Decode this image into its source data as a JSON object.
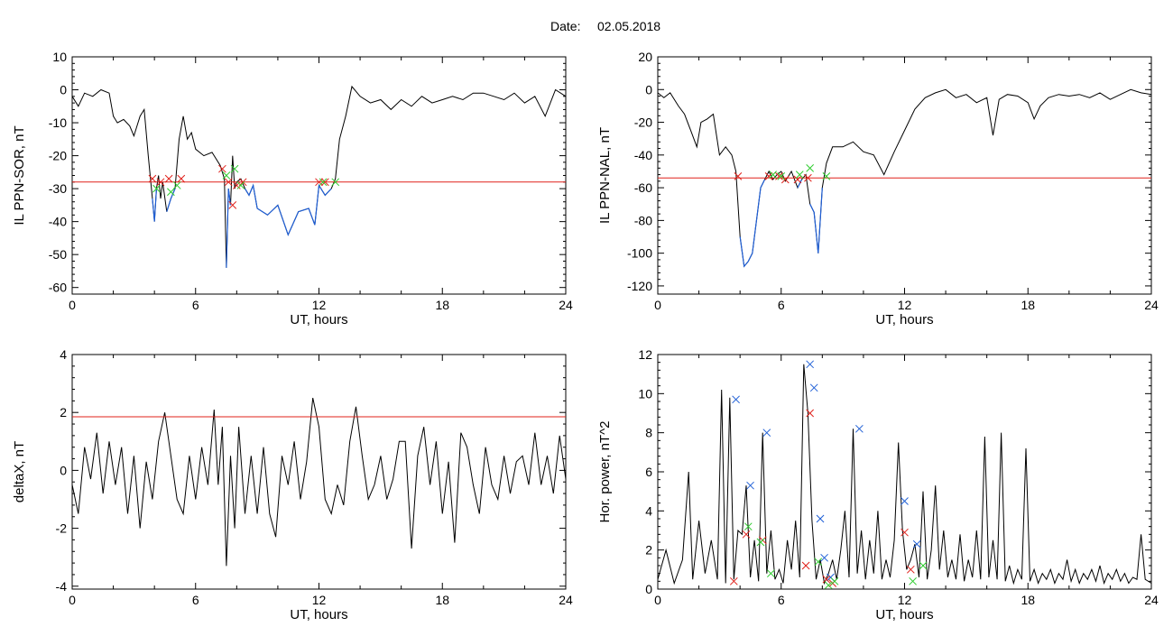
{
  "header": {
    "date_label": "Date:",
    "date_value": "02.05.2018"
  },
  "colors": {
    "axis": "#000000",
    "trace": "#000000",
    "highlight": "#1f5fd6",
    "threshold": "#e0201a",
    "mark_red": "#e0201a",
    "mark_green": "#2ecc2e",
    "mark_blue": "#1f5fd6"
  },
  "chart_data": [
    {
      "id": "sor",
      "type": "line",
      "xlabel": "UT, hours",
      "ylabel": "IL PPN-SOR, nT",
      "xlim": [
        0,
        24
      ],
      "ylim": [
        -62,
        10
      ],
      "xticks": [
        0,
        6,
        12,
        18,
        24
      ],
      "yticks": [
        10,
        0,
        -10,
        -20,
        -30,
        -40,
        -50,
        -60
      ],
      "threshold": -28,
      "series": [
        {
          "x": [
            0,
            0.3,
            0.6,
            1,
            1.4,
            1.8,
            2.0,
            2.2,
            2.5,
            2.8,
            3.0,
            3.3,
            3.5,
            3.7,
            3.9,
            4.0,
            4.1,
            4.2,
            4.3,
            4.4,
            4.6,
            4.8,
            5.0,
            5.2,
            5.4,
            5.6,
            5.8,
            6.0,
            6.4,
            6.8,
            7.2,
            7.4,
            7.5,
            7.6,
            7.7,
            7.8,
            7.9,
            8.0,
            8.2,
            8.4,
            8.6,
            8.8,
            9.0,
            9.5,
            10,
            10.5,
            11,
            11.5,
            11.8,
            12.0,
            12.3,
            12.6,
            12.8,
            13.0,
            13.3,
            13.6,
            14.0,
            14.5,
            15.0,
            15.5,
            16.0,
            16.5,
            17.0,
            17.5,
            18.0,
            18.5,
            19.0,
            19.5,
            20.0,
            20.5,
            21.0,
            21.5,
            22.0,
            22.5,
            23.0,
            23.5,
            24
          ],
          "y": [
            -2,
            -5,
            -1,
            -2,
            0,
            -1,
            -8,
            -10,
            -9,
            -11,
            -14,
            -8,
            -6,
            -20,
            -33,
            -40,
            -30,
            -26,
            -33,
            -28,
            -37,
            -33,
            -30,
            -15,
            -8,
            -15,
            -13,
            -18,
            -20,
            -19,
            -23,
            -27,
            -54,
            -30,
            -35,
            -20,
            -30,
            -28,
            -27,
            -30,
            -32,
            -29,
            -36,
            -38,
            -35,
            -44,
            -37,
            -36,
            -41,
            -29,
            -32,
            -30,
            -27,
            -15,
            -8,
            1,
            -2,
            -4,
            -3,
            -6,
            -3,
            -5,
            -2,
            -4,
            -3,
            -2,
            -3,
            -1,
            -1,
            -2,
            -3,
            -1,
            -4,
            -2,
            -8,
            0,
            -2
          ]
        }
      ],
      "markers": [
        {
          "x": 3.9,
          "y": -27,
          "color": "red"
        },
        {
          "x": 4.3,
          "y": -28,
          "color": "red"
        },
        {
          "x": 4.7,
          "y": -27,
          "color": "red"
        },
        {
          "x": 5.3,
          "y": -27,
          "color": "red"
        },
        {
          "x": 4.1,
          "y": -30,
          "color": "green"
        },
        {
          "x": 4.8,
          "y": -31,
          "color": "green"
        },
        {
          "x": 5.1,
          "y": -29,
          "color": "green"
        },
        {
          "x": 7.3,
          "y": -24,
          "color": "red"
        },
        {
          "x": 7.6,
          "y": -28,
          "color": "red"
        },
        {
          "x": 7.8,
          "y": -35,
          "color": "red"
        },
        {
          "x": 8.0,
          "y": -29,
          "color": "red"
        },
        {
          "x": 8.3,
          "y": -28,
          "color": "red"
        },
        {
          "x": 7.5,
          "y": -26,
          "color": "green"
        },
        {
          "x": 7.9,
          "y": -24,
          "color": "green"
        },
        {
          "x": 8.2,
          "y": -29,
          "color": "green"
        },
        {
          "x": 12.0,
          "y": -28,
          "color": "red"
        },
        {
          "x": 12.3,
          "y": -28,
          "color": "red"
        },
        {
          "x": 12.2,
          "y": -28,
          "color": "green"
        },
        {
          "x": 12.8,
          "y": -28,
          "color": "green"
        }
      ]
    },
    {
      "id": "nal",
      "type": "line",
      "xlabel": "UT, hours",
      "ylabel": "IL PPN-NAL, nT",
      "xlim": [
        0,
        24
      ],
      "ylim": [
        -125,
        20
      ],
      "xticks": [
        0,
        6,
        12,
        18,
        24
      ],
      "yticks": [
        20,
        0,
        -20,
        -40,
        -60,
        -80,
        -100,
        -120
      ],
      "threshold": -54,
      "series": [
        {
          "x": [
            0,
            0.3,
            0.6,
            1.0,
            1.3,
            1.6,
            1.9,
            2.1,
            2.4,
            2.7,
            3.0,
            3.3,
            3.6,
            3.8,
            4.0,
            4.2,
            4.4,
            4.6,
            4.8,
            5.0,
            5.2,
            5.4,
            5.6,
            5.8,
            6.0,
            6.2,
            6.5,
            6.8,
            7.0,
            7.2,
            7.4,
            7.6,
            7.8,
            8.0,
            8.2,
            8.5,
            9.0,
            9.5,
            10,
            10.5,
            11.0,
            11.5,
            12.0,
            12.5,
            13.0,
            13.5,
            14.0,
            14.5,
            15.0,
            15.5,
            16.0,
            16.3,
            16.6,
            17.0,
            17.5,
            18.0,
            18.3,
            18.6,
            19.0,
            19.5,
            20.0,
            20.5,
            21.0,
            21.5,
            22.0,
            22.5,
            23.0,
            23.5,
            24
          ],
          "y": [
            -2,
            -5,
            -2,
            -10,
            -15,
            -25,
            -35,
            -20,
            -18,
            -15,
            -40,
            -35,
            -40,
            -50,
            -90,
            -108,
            -105,
            -100,
            -80,
            -60,
            -55,
            -50,
            -55,
            -52,
            -50,
            -56,
            -50,
            -60,
            -55,
            -52,
            -70,
            -75,
            -100,
            -60,
            -45,
            -35,
            -35,
            -32,
            -38,
            -40,
            -52,
            -38,
            -25,
            -12,
            -5,
            -2,
            0,
            -5,
            -3,
            -8,
            -5,
            -28,
            -6,
            -3,
            -4,
            -8,
            -18,
            -10,
            -5,
            -3,
            -4,
            -3,
            -5,
            -2,
            -6,
            -3,
            0,
            -2,
            -3
          ]
        }
      ],
      "markers": [
        {
          "x": 3.9,
          "y": -53,
          "color": "red"
        },
        {
          "x": 5.4,
          "y": -53,
          "color": "red"
        },
        {
          "x": 5.9,
          "y": -53,
          "color": "red"
        },
        {
          "x": 6.2,
          "y": -55,
          "color": "red"
        },
        {
          "x": 6.8,
          "y": -55,
          "color": "red"
        },
        {
          "x": 7.3,
          "y": -54,
          "color": "red"
        },
        {
          "x": 5.6,
          "y": -52,
          "color": "green"
        },
        {
          "x": 6.0,
          "y": -53,
          "color": "green"
        },
        {
          "x": 6.9,
          "y": -52,
          "color": "green"
        },
        {
          "x": 7.4,
          "y": -48,
          "color": "green"
        },
        {
          "x": 8.2,
          "y": -53,
          "color": "green"
        }
      ]
    },
    {
      "id": "deltax",
      "type": "line",
      "xlabel": "UT, hours",
      "ylabel": "deltaX, nT",
      "xlim": [
        0,
        24
      ],
      "ylim": [
        -4.1,
        4
      ],
      "xticks": [
        0,
        6,
        12,
        18,
        24
      ],
      "yticks": [
        4,
        2,
        0,
        -2,
        -4
      ],
      "threshold": 1.85,
      "series": [
        {
          "x": [
            0,
            0.3,
            0.6,
            0.9,
            1.2,
            1.5,
            1.8,
            2.1,
            2.4,
            2.7,
            3.0,
            3.3,
            3.6,
            3.9,
            4.2,
            4.5,
            4.8,
            5.1,
            5.4,
            5.7,
            6.0,
            6.3,
            6.6,
            6.9,
            7.1,
            7.3,
            7.5,
            7.7,
            7.9,
            8.1,
            8.4,
            8.7,
            9.0,
            9.3,
            9.6,
            9.9,
            10.2,
            10.5,
            10.8,
            11.1,
            11.4,
            11.7,
            12.0,
            12.3,
            12.6,
            12.9,
            13.2,
            13.5,
            13.8,
            14.1,
            14.4,
            14.7,
            15.0,
            15.3,
            15.6,
            15.9,
            16.2,
            16.5,
            16.8,
            17.1,
            17.4,
            17.7,
            18.0,
            18.3,
            18.6,
            18.9,
            19.2,
            19.5,
            19.8,
            20.1,
            20.4,
            20.7,
            21.0,
            21.3,
            21.6,
            21.9,
            22.2,
            22.5,
            22.8,
            23.1,
            23.4,
            23.7,
            24
          ],
          "y": [
            -0.5,
            -1.5,
            0.8,
            -0.3,
            1.3,
            -0.8,
            1.0,
            -0.5,
            0.8,
            -1.5,
            0.5,
            -2.0,
            0.3,
            -1.0,
            1.0,
            2.0,
            0.5,
            -1.0,
            -1.5,
            0.5,
            -1.0,
            0.8,
            -0.5,
            2.1,
            -0.5,
            1.5,
            -3.3,
            0.5,
            -2.0,
            1.5,
            -1.5,
            0.5,
            -1.5,
            0.8,
            -1.5,
            -2.3,
            0.5,
            -0.5,
            1.0,
            -1.0,
            0.3,
            2.5,
            1.5,
            -1.0,
            -1.5,
            -0.5,
            -1.2,
            1.0,
            2.2,
            0.5,
            -1.0,
            -0.5,
            0.5,
            -1.0,
            -0.3,
            1.0,
            1.0,
            -2.7,
            0.5,
            1.5,
            -0.5,
            1.0,
            -1.5,
            0.3,
            -2.5,
            1.3,
            0.8,
            -0.5,
            -1.5,
            0.8,
            -0.5,
            -1.0,
            0.5,
            -0.8,
            0.3,
            0.5,
            -0.5,
            1.3,
            -0.5,
            0.5,
            -0.8,
            1.2,
            -0.3
          ]
        }
      ],
      "markers": []
    },
    {
      "id": "power",
      "type": "line",
      "xlabel": "UT, hours",
      "ylabel": "Hor. power, nT^2",
      "xlim": [
        0,
        24
      ],
      "ylim": [
        0,
        12
      ],
      "xticks": [
        0,
        6,
        12,
        18,
        24
      ],
      "yticks": [
        0,
        2,
        4,
        6,
        8,
        10,
        12
      ],
      "threshold": null,
      "series": [
        {
          "x": [
            0,
            0.4,
            0.8,
            1.2,
            1.5,
            1.7,
            2.0,
            2.3,
            2.6,
            2.9,
            3.1,
            3.3,
            3.5,
            3.7,
            3.9,
            4.1,
            4.3,
            4.5,
            4.7,
            4.9,
            5.1,
            5.3,
            5.5,
            5.7,
            5.9,
            6.1,
            6.3,
            6.5,
            6.7,
            6.9,
            7.1,
            7.3,
            7.5,
            7.7,
            7.9,
            8.1,
            8.3,
            8.5,
            8.7,
            8.9,
            9.1,
            9.3,
            9.5,
            9.7,
            9.9,
            10.1,
            10.3,
            10.5,
            10.7,
            10.9,
            11.1,
            11.3,
            11.5,
            11.7,
            11.9,
            12.1,
            12.3,
            12.5,
            12.7,
            12.9,
            13.1,
            13.3,
            13.5,
            13.7,
            13.9,
            14.1,
            14.3,
            14.5,
            14.7,
            14.9,
            15.1,
            15.3,
            15.5,
            15.7,
            15.9,
            16.1,
            16.3,
            16.5,
            16.7,
            16.9,
            17.1,
            17.3,
            17.5,
            17.7,
            17.9,
            18.1,
            18.3,
            18.5,
            18.7,
            18.9,
            19.1,
            19.3,
            19.5,
            19.7,
            19.9,
            20.1,
            20.3,
            20.5,
            20.7,
            20.9,
            21.1,
            21.3,
            21.5,
            21.7,
            21.9,
            22.1,
            22.3,
            22.5,
            22.7,
            22.9,
            23.1,
            23.3,
            23.5,
            23.7,
            24
          ],
          "y": [
            0.5,
            2.0,
            0.3,
            1.5,
            6.0,
            0.5,
            3.5,
            0.8,
            2.5,
            0.5,
            10.2,
            0.3,
            9.8,
            0.5,
            3.0,
            2.8,
            5.3,
            0.6,
            2.5,
            0.4,
            8.0,
            0.8,
            3.0,
            0.5,
            1.0,
            0.3,
            2.5,
            1.0,
            3.5,
            0.6,
            11.5,
            9.0,
            3.5,
            0.5,
            1.5,
            0.3,
            0.8,
            1.5,
            0.5,
            2.0,
            4.0,
            0.6,
            8.2,
            0.8,
            3.0,
            0.5,
            2.5,
            0.8,
            4.0,
            0.5,
            1.5,
            0.6,
            2.5,
            7.5,
            3.0,
            1.0,
            1.5,
            2.3,
            0.6,
            5.0,
            0.5,
            2.0,
            5.3,
            1.0,
            3.0,
            0.6,
            1.5,
            0.5,
            2.8,
            0.4,
            1.5,
            0.6,
            3.0,
            0.5,
            7.8,
            0.6,
            2.5,
            0.5,
            8.0,
            0.4,
            1.2,
            0.3,
            1.0,
            0.5,
            7.2,
            0.4,
            1.0,
            0.3,
            0.8,
            0.5,
            1.0,
            0.3,
            0.8,
            0.5,
            1.5,
            0.4,
            1.0,
            0.3,
            0.8,
            0.5,
            1.0,
            0.4,
            1.2,
            0.3,
            0.8,
            0.5,
            1.0,
            0.4,
            0.8,
            0.3,
            0.6,
            0.5,
            2.8,
            0.5,
            0.3
          ]
        }
      ],
      "markers": [
        {
          "x": 3.8,
          "y": 9.7,
          "color": "blue"
        },
        {
          "x": 4.5,
          "y": 5.3,
          "color": "blue"
        },
        {
          "x": 5.3,
          "y": 8.0,
          "color": "blue"
        },
        {
          "x": 7.4,
          "y": 11.5,
          "color": "blue"
        },
        {
          "x": 7.6,
          "y": 10.3,
          "color": "blue"
        },
        {
          "x": 7.9,
          "y": 3.6,
          "color": "blue"
        },
        {
          "x": 8.1,
          "y": 1.6,
          "color": "blue"
        },
        {
          "x": 9.8,
          "y": 8.2,
          "color": "blue"
        },
        {
          "x": 12.0,
          "y": 4.5,
          "color": "blue"
        },
        {
          "x": 12.6,
          "y": 2.3,
          "color": "blue"
        },
        {
          "x": 8.4,
          "y": 0.6,
          "color": "blue"
        },
        {
          "x": 3.7,
          "y": 0.4,
          "color": "red"
        },
        {
          "x": 4.3,
          "y": 2.8,
          "color": "red"
        },
        {
          "x": 5.1,
          "y": 2.5,
          "color": "red"
        },
        {
          "x": 7.2,
          "y": 1.2,
          "color": "red"
        },
        {
          "x": 7.4,
          "y": 9.0,
          "color": "red"
        },
        {
          "x": 8.2,
          "y": 0.5,
          "color": "red"
        },
        {
          "x": 8.5,
          "y": 0.3,
          "color": "red"
        },
        {
          "x": 12.0,
          "y": 2.9,
          "color": "red"
        },
        {
          "x": 12.3,
          "y": 1.0,
          "color": "red"
        },
        {
          "x": 4.4,
          "y": 3.2,
          "color": "green"
        },
        {
          "x": 5.0,
          "y": 2.4,
          "color": "green"
        },
        {
          "x": 5.5,
          "y": 0.8,
          "color": "green"
        },
        {
          "x": 7.8,
          "y": 1.4,
          "color": "green"
        },
        {
          "x": 8.3,
          "y": 0.2,
          "color": "green"
        },
        {
          "x": 8.6,
          "y": 0.4,
          "color": "green"
        },
        {
          "x": 12.4,
          "y": 0.4,
          "color": "green"
        },
        {
          "x": 12.9,
          "y": 1.2,
          "color": "green"
        }
      ]
    }
  ]
}
